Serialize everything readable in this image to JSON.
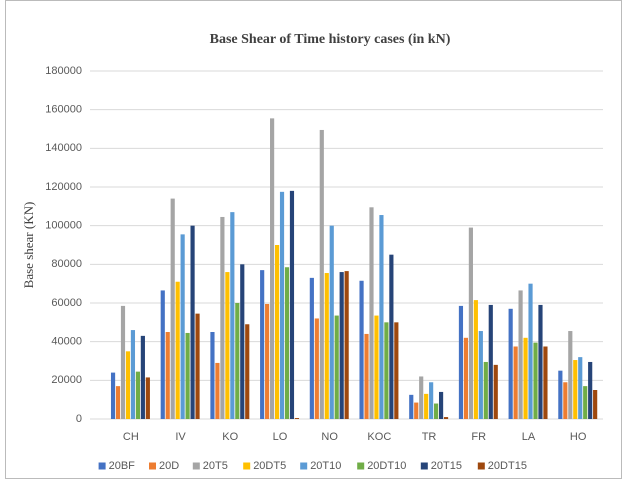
{
  "chart_data": {
    "type": "bar",
    "title": "Base Shear of Time history cases (in kN)",
    "y_label": "Base shear (KN)",
    "categories": [
      "CH",
      "IV",
      "KO",
      "LO",
      "NO",
      "KOC",
      "TR",
      "FR",
      "LA",
      "HO"
    ],
    "series": [
      {
        "name": "20BF",
        "color": "#4472c4",
        "values": [
          24000,
          66500,
          45000,
          77000,
          73000,
          71500,
          12500,
          58500,
          57000,
          25000
        ]
      },
      {
        "name": "20D",
        "color": "#ed7d31",
        "values": [
          17000,
          45000,
          29000,
          59500,
          52000,
          44000,
          8500,
          42000,
          37500,
          19000
        ]
      },
      {
        "name": "20T5",
        "color": "#a5a5a5",
        "values": [
          58500,
          114000,
          104500,
          155500,
          149500,
          109500,
          22000,
          99000,
          66500,
          45500
        ]
      },
      {
        "name": "20DT5",
        "color": "#ffc000",
        "values": [
          35000,
          71000,
          76000,
          90000,
          75500,
          53500,
          13000,
          61500,
          42000,
          30500
        ]
      },
      {
        "name": "20T10",
        "color": "#5b9bd5",
        "values": [
          46000,
          95500,
          107000,
          117500,
          100000,
          105500,
          19000,
          45500,
          70000,
          32000
        ]
      },
      {
        "name": "20DT10",
        "color": "#70ad47",
        "values": [
          24500,
          44500,
          60000,
          78500,
          53500,
          50000,
          8000,
          29500,
          39500,
          17000
        ]
      },
      {
        "name": "20T15",
        "color": "#264478",
        "values": [
          43000,
          100000,
          80000,
          118000,
          76000,
          85000,
          14000,
          59000,
          59000,
          29500
        ]
      },
      {
        "name": "20DT15",
        "color": "#9e480e",
        "values": [
          21500,
          54500,
          49000,
          500,
          76500,
          50000,
          1000,
          28000,
          37500,
          15000
        ]
      }
    ],
    "ylim": [
      0,
      180000
    ],
    "yticks": [
      0,
      20000,
      40000,
      60000,
      80000,
      100000,
      120000,
      140000,
      160000,
      180000
    ],
    "grid": true,
    "legend": "bottom"
  }
}
